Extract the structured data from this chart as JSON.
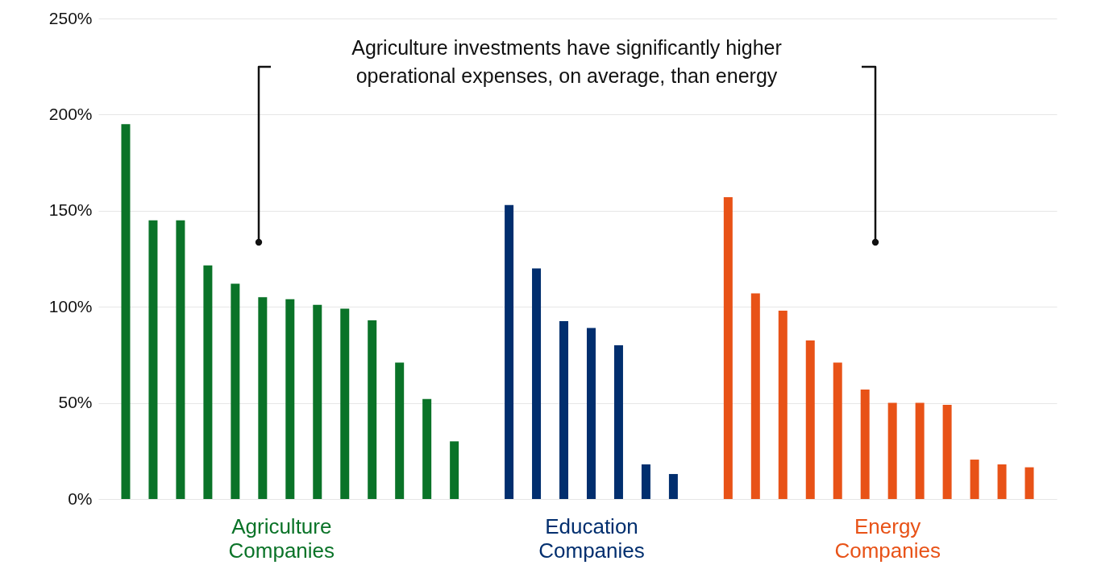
{
  "chart_data": {
    "type": "bar",
    "categories": [
      null,
      null,
      null,
      null,
      null,
      null,
      null,
      null,
      null,
      null,
      null,
      null,
      null,
      null,
      null,
      null,
      null,
      null,
      null,
      null,
      null,
      null,
      null,
      null,
      null,
      null,
      null,
      null,
      null,
      null,
      null,
      null,
      null,
      null
    ],
    "series": [
      {
        "name": "Agriculture Companies",
        "color": "#0a7328",
        "values": [
          195,
          145,
          145,
          121.5,
          112,
          105,
          104,
          101,
          99,
          93,
          71,
          52,
          30,
          null,
          null,
          null,
          null,
          null,
          null,
          null,
          null,
          null,
          null,
          null,
          null,
          null,
          null,
          null,
          null,
          null,
          null,
          null,
          null,
          null
        ]
      },
      {
        "name": "Education Companies",
        "color": "#012e6e",
        "values": [
          null,
          null,
          null,
          null,
          null,
          null,
          null,
          null,
          null,
          null,
          null,
          null,
          null,
          null,
          153,
          120,
          92.5,
          89,
          80,
          18,
          13,
          null,
          null,
          null,
          null,
          null,
          null,
          null,
          null,
          null,
          null,
          null,
          null,
          null
        ]
      },
      {
        "name": "Energy Companies",
        "color": "#e85217",
        "values": [
          null,
          null,
          null,
          null,
          null,
          null,
          null,
          null,
          null,
          null,
          null,
          null,
          null,
          null,
          null,
          null,
          null,
          null,
          null,
          null,
          null,
          null,
          157,
          107,
          98,
          82.5,
          71,
          57,
          50,
          50,
          49,
          20.5,
          18,
          16.5
        ]
      }
    ],
    "ylim": [
      0,
      250
    ],
    "yticks": [
      {
        "value": 0,
        "label": "0%"
      },
      {
        "value": 50,
        "label": "50%"
      },
      {
        "value": 100,
        "label": "100%"
      },
      {
        "value": 150,
        "label": "150%"
      },
      {
        "value": 200,
        "label": "200%"
      },
      {
        "value": 250,
        "label": "250%"
      }
    ],
    "grid": "y",
    "legend": false,
    "tick_labels": "y",
    "annotations": [
      "Agriculture investments have significantly higher\noperational expenses, on average, than energy"
    ]
  }
}
